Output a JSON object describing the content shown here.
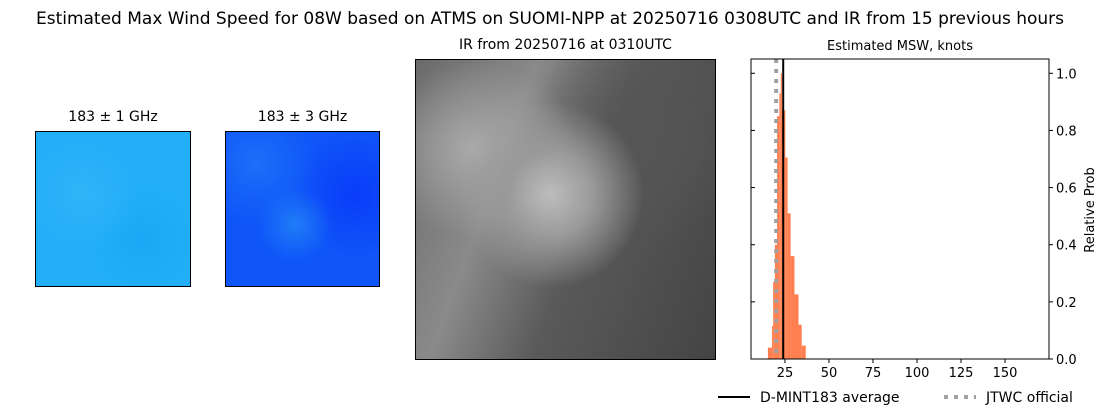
{
  "title": "Estimated Max Wind Speed for 08W based on ATMS on SUOMI-NPP at 20250716 0308UTC and IR from 15 previous hours",
  "panels": {
    "mw1": "183 ± 1 GHz",
    "mw2": "183 ± 3 GHz",
    "ir": "IR from 20250716 at 0310UTC"
  },
  "chart_data": {
    "type": "bar",
    "title": "Estimated MSW, knots",
    "ylabel": "Relative Prob",
    "xlim": [
      5.7,
      175
    ],
    "ylim": [
      0,
      1.05
    ],
    "xticks": [
      25,
      50,
      75,
      100,
      125,
      150
    ],
    "yticks": [
      0.0,
      0.2,
      0.4,
      0.6,
      0.8,
      1.0
    ],
    "bar_color": "#ff7f50",
    "bins": [
      {
        "x0": 15.3,
        "x1": 17.6,
        "y": 0.04
      },
      {
        "x0": 17.6,
        "x1": 18.3,
        "y": 0.115
      },
      {
        "x0": 18.3,
        "x1": 19.3,
        "y": 0.27
      },
      {
        "x0": 19.3,
        "x1": 20.5,
        "y": 0.4
      },
      {
        "x0": 20.5,
        "x1": 21.8,
        "y": 0.85
      },
      {
        "x0": 21.8,
        "x1": 22.6,
        "y": 0.93
      },
      {
        "x0": 22.6,
        "x1": 23.3,
        "y": 1.0
      },
      {
        "x0": 23.3,
        "x1": 25.2,
        "y": 0.87
      },
      {
        "x0": 25.2,
        "x1": 26.5,
        "y": 0.705
      },
      {
        "x0": 26.5,
        "x1": 28.2,
        "y": 0.51
      },
      {
        "x0": 28.2,
        "x1": 30.4,
        "y": 0.36
      },
      {
        "x0": 30.4,
        "x1": 32.7,
        "y": 0.226
      },
      {
        "x0": 32.7,
        "x1": 34.5,
        "y": 0.12
      },
      {
        "x0": 34.5,
        "x1": 36.8,
        "y": 0.047
      }
    ],
    "lines": [
      {
        "name": "D-MINT183 average",
        "x": 24,
        "color": "#000000",
        "style": "solid"
      },
      {
        "name": "JTWC official",
        "x": 20,
        "color": "#a0a0a0",
        "style": "dotted"
      }
    ],
    "legend": "bottom"
  }
}
